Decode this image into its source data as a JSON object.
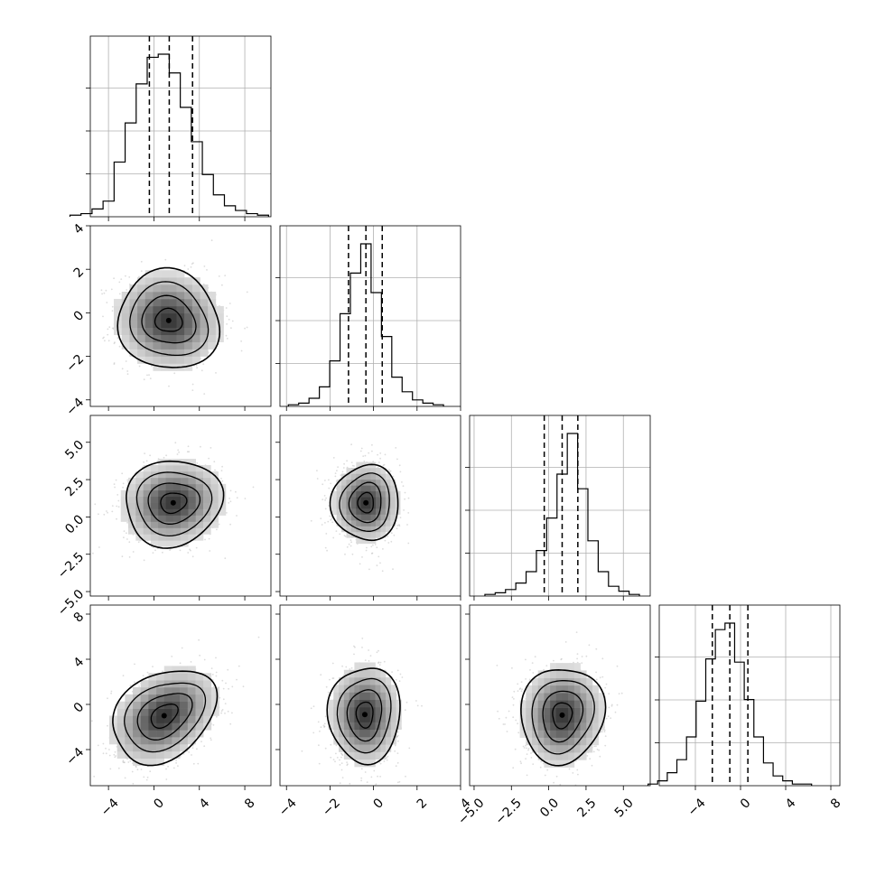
{
  "chart_data": {
    "type": "corner",
    "n_params": 4,
    "grid": true,
    "params": [
      {
        "name": "",
        "range": [
          -5.6,
          10.3
        ],
        "ticks": [
          -4,
          0,
          4,
          8
        ],
        "tick_labels": [
          "−4",
          "0",
          "4",
          "8"
        ],
        "quantiles": [
          -0.4,
          1.35,
          3.4
        ],
        "hist_counts": [
          1,
          2,
          5,
          10,
          35,
          60,
          85,
          102,
          104,
          92,
          70,
          48,
          27,
          14,
          7,
          4,
          2,
          1
        ]
      },
      {
        "name": "",
        "range": [
          -4.3,
          4.0
        ],
        "ticks": [
          -4,
          -2,
          0,
          2,
          4
        ],
        "tick_labels": [
          "−4",
          "−2",
          "0",
          "2",
          "4"
        ],
        "quantiles": [
          -1.15,
          -0.35,
          0.4
        ],
        "hist_counts": [
          1,
          2,
          5,
          12,
          28,
          57,
          82,
          100,
          70,
          43,
          18,
          9,
          4,
          2,
          1
        ]
      },
      {
        "name": "",
        "range": [
          -5.3,
          6.8
        ],
        "ticks": [
          -5.0,
          -2.5,
          0.0,
          2.5,
          5.0
        ],
        "tick_labels": [
          "−5.0",
          "−2.5",
          "0.0",
          "2.5",
          "5.0"
        ],
        "quantiles": [
          -0.3,
          0.9,
          1.95
        ],
        "hist_counts": [
          1,
          2,
          4,
          8,
          15,
          28,
          48,
          75,
          100,
          66,
          34,
          15,
          6,
          3,
          1
        ]
      },
      {
        "name": "",
        "range": [
          -7.2,
          8.8
        ],
        "ticks": [
          -4,
          0,
          4,
          8
        ],
        "tick_labels": [
          "−4",
          "0",
          "4",
          "8"
        ],
        "quantiles": [
          -2.5,
          -0.95,
          0.65
        ],
        "hist_counts": [
          1,
          3,
          8,
          16,
          30,
          52,
          78,
          96,
          100,
          76,
          53,
          30,
          14,
          6,
          3,
          1,
          1
        ]
      }
    ],
    "pairs": [
      {
        "x_param": 0,
        "y_param": 1,
        "center": [
          1.3,
          -0.35
        ],
        "spread": [
          2.3,
          1.1
        ],
        "rho": -0.05
      },
      {
        "x_param": 0,
        "y_param": 2,
        "center": [
          1.7,
          0.95
        ],
        "spread": [
          2.2,
          1.4
        ],
        "rho": 0.1
      },
      {
        "x_param": 0,
        "y_param": 3,
        "center": [
          0.9,
          -1.0
        ],
        "spread": [
          2.3,
          2.1
        ],
        "rho": 0.35
      },
      {
        "x_param": 1,
        "y_param": 2,
        "center": [
          -0.35,
          0.95
        ],
        "spread": [
          0.75,
          1.3
        ],
        "rho": 0.0
      },
      {
        "x_param": 1,
        "y_param": 3,
        "center": [
          -0.4,
          -0.9
        ],
        "spread": [
          0.8,
          2.2
        ],
        "rho": 0.0
      },
      {
        "x_param": 2,
        "y_param": 3,
        "center": [
          0.9,
          -0.95
        ],
        "spread": [
          1.35,
          2.2
        ],
        "rho": 0.05
      }
    ],
    "contour_levels_sigma": [
      0.5,
      1.0,
      1.5,
      2.0
    ]
  }
}
